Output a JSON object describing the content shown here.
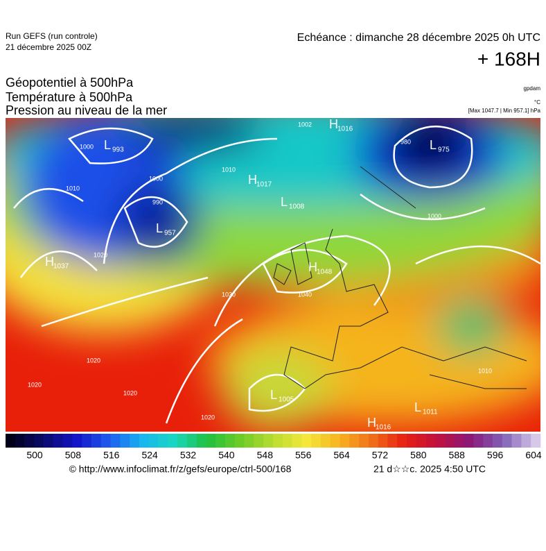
{
  "header": {
    "run": "Run GEFS (run controle)",
    "run_date": "21 décembre 2025 00Z",
    "valid": "Echéance : dimanche 28 décembre 2025 0h UTC",
    "lead": "+ 168H"
  },
  "titles": [
    "Géopotentiel à 500hPa",
    "Température à 500hPa",
    "Pression au niveau de la mer"
  ],
  "units": [
    "gpdam",
    "°C",
    "[Max 1047.7 | Min 957.1] hPa"
  ],
  "centers": [
    {
      "type": "L",
      "value": "993"
    },
    {
      "type": "L",
      "value": "975"
    },
    {
      "type": "H",
      "value": "1016"
    },
    {
      "type": "L",
      "value": "1008"
    },
    {
      "type": "H",
      "value": "1017"
    },
    {
      "type": "L",
      "value": "957"
    },
    {
      "type": "H",
      "value": "1037"
    },
    {
      "type": "H",
      "value": "1048"
    },
    {
      "type": "L",
      "value": "1005"
    },
    {
      "type": "L",
      "value": "1011"
    },
    {
      "type": "H",
      "value": "1016"
    }
  ],
  "isobar_labels": [
    "1000",
    "1002",
    "1010",
    "990",
    "1000",
    "980",
    "1000",
    "1010",
    "1020",
    "1030",
    "1040",
    "1020",
    "1020",
    "1020",
    "1020",
    "1010"
  ],
  "colorbar": {
    "ticks": [
      500,
      508,
      516,
      524,
      532,
      540,
      548,
      556,
      564,
      572,
      580,
      588,
      596,
      604
    ]
  },
  "footer": {
    "url": "© http://www.infoclimat.fr/z/gefs/europe/ctrl-500/168",
    "stamp": "21 d☆☆c. 2025  4:50 UTC"
  }
}
